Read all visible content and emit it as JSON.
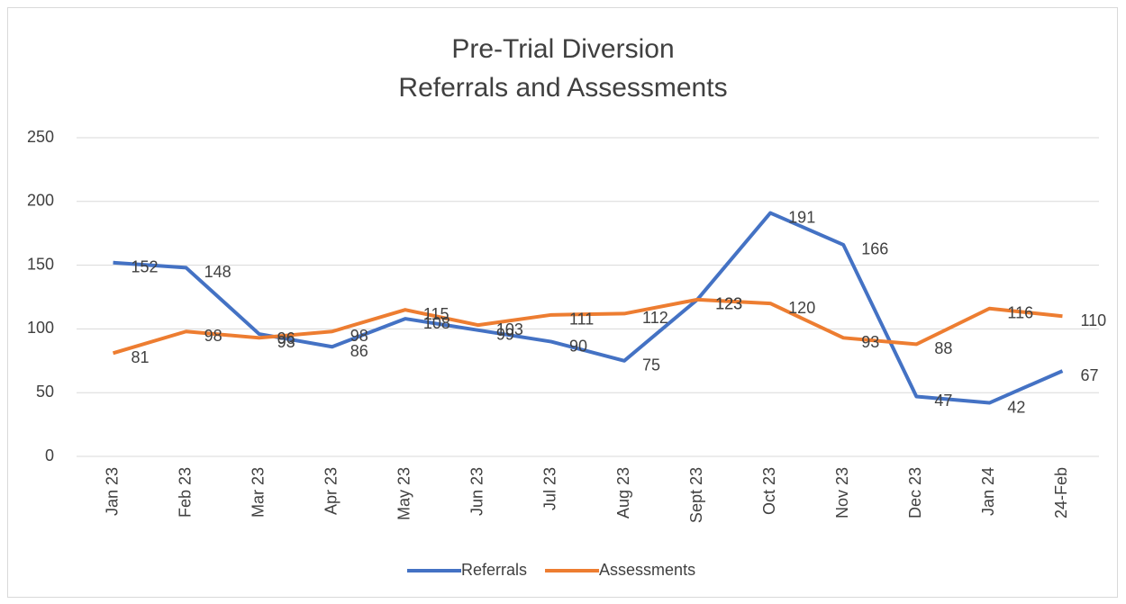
{
  "chart_data": {
    "type": "line",
    "title": "Pre-Trial Diversion",
    "subtitle": "Referrals and Assessments",
    "categories": [
      "Jan 23",
      "Feb 23",
      "Mar 23",
      "Apr 23",
      "May 23",
      "Jun 23",
      "Jul 23",
      "Aug 23",
      "Sept 23",
      "Oct 23",
      "Nov 23",
      "Dec 23",
      "Jan 24",
      "24-Feb"
    ],
    "series": [
      {
        "name": "Referrals",
        "color": "#4472c4",
        "values": [
          152,
          148,
          96,
          86,
          108,
          99,
          90,
          75,
          123,
          191,
          166,
          47,
          42,
          67
        ]
      },
      {
        "name": "Assessments",
        "color": "#ed7d31",
        "values": [
          81,
          98,
          93,
          98,
          115,
          103,
          111,
          112,
          123,
          120,
          93,
          88,
          116,
          110
        ]
      }
    ],
    "ylim": [
      0,
      250
    ],
    "yticks": [
      0,
      50,
      100,
      150,
      200,
      250
    ],
    "grid": true,
    "legend": "bottom"
  }
}
